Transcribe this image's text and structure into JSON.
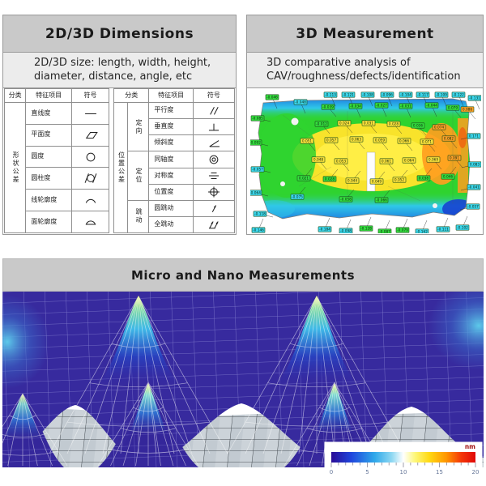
{
  "dims": {
    "title": "2D/3D Dimensions",
    "subtitle": "2D/3D size: length, width, height, diameter, distance, angle, etc",
    "table": {
      "headers": {
        "category": "分类",
        "feature": "特征项目",
        "symbol": "符号"
      },
      "form": {
        "category": "形状公差",
        "rows": [
          {
            "item": "直线度",
            "symbol": "straightness-icon"
          },
          {
            "item": "平面度",
            "symbol": "flatness-icon"
          },
          {
            "item": "圆度",
            "symbol": "roundness-icon"
          },
          {
            "item": "圆柱度",
            "symbol": "cylindricity-icon"
          },
          {
            "item": "线轮廓度",
            "symbol": "line-profile-icon"
          },
          {
            "item": "面轮廓度",
            "symbol": "surface-profile-icon"
          }
        ]
      },
      "position": {
        "category": "位置公差",
        "groups": [
          {
            "name": "定向",
            "rows": [
              {
                "item": "平行度",
                "symbol": "parallelism-icon"
              },
              {
                "item": "垂直度",
                "symbol": "perpendicularity-icon"
              },
              {
                "item": "倾斜度",
                "symbol": "angularity-icon"
              }
            ]
          },
          {
            "name": "定位",
            "rows": [
              {
                "item": "同轴度",
                "symbol": "coaxiality-icon"
              },
              {
                "item": "对称度",
                "symbol": "symmetry-icon"
              },
              {
                "item": "位置度",
                "symbol": "position-icon"
              }
            ]
          },
          {
            "name": "跳动",
            "rows": [
              {
                "item": "圆跳动",
                "symbol": "circular-runout-icon"
              },
              {
                "item": "全跳动",
                "symbol": "total-runout-icon"
              }
            ]
          }
        ]
      }
    }
  },
  "meas3d": {
    "title": "3D Measurement",
    "subtitle": "3D comparative analysis of CAV/roughness/defects/identification",
    "palette": {
      "g": "#35dd3f",
      "y": "#ffe43c",
      "c": "#3cd8ef",
      "o": "#ffa228"
    },
    "labels": [
      [
        99,
        5,
        "c",
        "-0.113"
      ],
      [
        121,
        5,
        "c",
        "-0.121"
      ],
      [
        145,
        5,
        "c",
        "-0.108"
      ],
      [
        169,
        5,
        "c",
        "-0.096"
      ],
      [
        192,
        5,
        "c",
        "-0.104"
      ],
      [
        213,
        5,
        "c",
        "-0.117"
      ],
      [
        236,
        5,
        "c",
        "-0.109"
      ],
      [
        257,
        5,
        "c",
        "-0.122"
      ],
      [
        277,
        9,
        "c",
        "-0.131"
      ],
      [
        27,
        8,
        "g",
        "-0.046"
      ],
      [
        62,
        14,
        "c",
        "-0.048"
      ],
      [
        96,
        20,
        "g",
        "-0.039"
      ],
      [
        130,
        19,
        "g",
        "-0.034"
      ],
      [
        162,
        18,
        "g",
        "-0.027"
      ],
      [
        192,
        19,
        "g",
        "-0.031"
      ],
      [
        224,
        18,
        "g",
        "-0.044"
      ],
      [
        250,
        21,
        "g",
        "0.079"
      ],
      [
        268,
        23,
        "o",
        "0.086"
      ],
      [
        9,
        34,
        "g",
        "-0.085"
      ],
      [
        6,
        64,
        "g",
        "-0.092"
      ],
      [
        9,
        97,
        "c",
        "-0.057"
      ],
      [
        6,
        126,
        "c",
        "-0.064"
      ],
      [
        12,
        152,
        "c",
        "-0.118"
      ],
      [
        10,
        172,
        "c",
        "-0.146"
      ],
      [
        88,
        41,
        "g",
        "-0.012"
      ],
      [
        116,
        40,
        "y",
        "0.024"
      ],
      [
        146,
        40,
        "y",
        "0.031"
      ],
      [
        177,
        41,
        "y",
        "0.028"
      ],
      [
        207,
        43,
        "g",
        "0.036"
      ],
      [
        233,
        45,
        "o",
        "0.074"
      ],
      [
        70,
        62,
        "y",
        "0.051"
      ],
      [
        100,
        61,
        "y",
        "0.057"
      ],
      [
        131,
        60,
        "y",
        "0.063"
      ],
      [
        160,
        61,
        "y",
        "0.059"
      ],
      [
        190,
        62,
        "y",
        "0.066"
      ],
      [
        218,
        63,
        "y",
        "0.071"
      ],
      [
        245,
        59,
        "o",
        "0.082"
      ],
      [
        84,
        85,
        "y",
        "0.048"
      ],
      [
        112,
        87,
        "y",
        "0.053"
      ],
      [
        168,
        87,
        "y",
        "0.061"
      ],
      [
        196,
        86,
        "y",
        "0.064"
      ],
      [
        226,
        85,
        "y",
        "0.069"
      ],
      [
        252,
        83,
        "o",
        "0.091"
      ],
      [
        66,
        108,
        "g",
        "0.021"
      ],
      [
        98,
        109,
        "g",
        "0.028"
      ],
      [
        126,
        111,
        "y",
        "0.044"
      ],
      [
        156,
        112,
        "y",
        "0.049"
      ],
      [
        184,
        110,
        "y",
        "0.052"
      ],
      [
        214,
        108,
        "g",
        "0.038"
      ],
      [
        244,
        106,
        "g",
        "0.046"
      ],
      [
        58,
        131,
        "c",
        "-0.075"
      ],
      [
        118,
        134,
        "g",
        "-0.058"
      ],
      [
        162,
        135,
        "g",
        "-0.066"
      ],
      [
        92,
        171,
        "c",
        "-0.184"
      ],
      [
        118,
        173,
        "c",
        "-0.098"
      ],
      [
        143,
        170,
        "g",
        "-0.128"
      ],
      [
        166,
        174,
        "g",
        "-0.087"
      ],
      [
        188,
        172,
        "g",
        "-0.079"
      ],
      [
        212,
        174,
        "c",
        "-0.162"
      ],
      [
        238,
        171,
        "c",
        "-0.111"
      ],
      [
        262,
        169,
        "c",
        "-0.102"
      ],
      [
        276,
        56,
        "c",
        "0.171"
      ],
      [
        277,
        91,
        "c",
        "0.083"
      ],
      [
        276,
        119,
        "c",
        "-0.041"
      ],
      [
        275,
        143,
        "c",
        "-0.057"
      ]
    ]
  },
  "micronano": {
    "title": "Micro and Nano Measurements",
    "colorbar": {
      "unit": "nm",
      "ticks": [
        "0",
        "5",
        "10",
        "15",
        "20"
      ]
    }
  }
}
